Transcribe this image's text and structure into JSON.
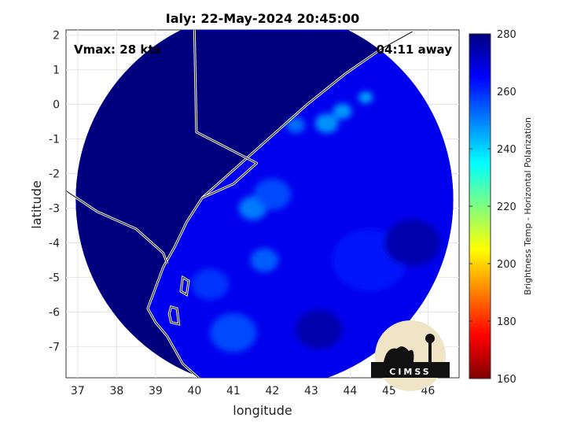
{
  "chart_data": {
    "type": "heatmap",
    "title": "Ialy: 22-May-2024 20:45:00",
    "xlabel": "longitude",
    "ylabel": "latitude",
    "xlim": [
      36.7,
      46.8
    ],
    "ylim": [
      -7.9,
      2.15
    ],
    "xticks": [
      37,
      38,
      39,
      40,
      41,
      42,
      43,
      44,
      45,
      46
    ],
    "yticks": [
      2,
      1,
      0,
      -1,
      -2,
      -3,
      -4,
      -5,
      -6,
      -7
    ],
    "grid": true,
    "annotations": {
      "vmax": "Vmax: 28 kts",
      "away": "04:11 away"
    },
    "colorbar": {
      "label": "Brightness Temp - Horizontal Polarization",
      "range": [
        160,
        280
      ],
      "ticks": [
        280,
        260,
        240,
        220,
        200,
        180,
        160
      ],
      "colormap": "jet"
    },
    "swath": {
      "center": [
        41.8,
        -2.75
      ],
      "radius_deg": 4.85
    },
    "field": {
      "background_value": 270,
      "ocean_value": 274,
      "warm_spots": [
        {
          "lon": 44.4,
          "lat": 0.2,
          "value": 242,
          "spread": 0.15
        },
        {
          "lon": 43.8,
          "lat": -0.2,
          "value": 244,
          "spread": 0.2
        },
        {
          "lon": 43.4,
          "lat": -0.55,
          "value": 245,
          "spread": 0.25
        },
        {
          "lon": 42.6,
          "lat": -0.6,
          "value": 250,
          "spread": 0.2
        },
        {
          "lon": 41.5,
          "lat": -3.0,
          "value": 248,
          "spread": 0.3
        },
        {
          "lon": 42.0,
          "lat": -2.6,
          "value": 255,
          "spread": 0.4
        },
        {
          "lon": 41.8,
          "lat": -4.5,
          "value": 252,
          "spread": 0.3
        },
        {
          "lon": 41.0,
          "lat": -6.6,
          "value": 255,
          "spread": 0.5
        },
        {
          "lon": 40.4,
          "lat": -5.2,
          "value": 258,
          "spread": 0.4
        },
        {
          "lon": 44.5,
          "lat": -4.5,
          "value": 262,
          "spread": 0.8
        }
      ],
      "cool_spots": [
        {
          "lon": 45.6,
          "lat": -4.0,
          "value": 276,
          "spread": 0.6
        },
        {
          "lon": 43.2,
          "lat": -6.5,
          "value": 276,
          "spread": 0.5
        }
      ]
    },
    "coastline": [
      [
        45.6,
        2.1
      ],
      [
        44.8,
        1.6
      ],
      [
        43.9,
        0.9
      ],
      [
        42.9,
        0.0
      ],
      [
        42.0,
        -0.9
      ],
      [
        41.3,
        -1.6
      ],
      [
        40.7,
        -2.2
      ],
      [
        40.2,
        -2.7
      ],
      [
        39.8,
        -3.4
      ],
      [
        39.5,
        -4.1
      ],
      [
        39.2,
        -4.7
      ],
      [
        39.0,
        -5.3
      ],
      [
        38.8,
        -5.9
      ],
      [
        39.0,
        -6.3
      ],
      [
        39.3,
        -6.7
      ],
      [
        39.5,
        -7.1
      ],
      [
        39.7,
        -7.5
      ],
      [
        40.1,
        -7.9
      ]
    ],
    "borders": [
      [
        [
          40.0,
          2.15
        ],
        [
          40.05,
          -0.8
        ],
        [
          41.6,
          -1.7
        ],
        [
          41.0,
          -2.3
        ],
        [
          40.2,
          -2.7
        ]
      ],
      [
        [
          36.7,
          -2.5
        ],
        [
          37.5,
          -3.1
        ],
        [
          38.5,
          -3.6
        ],
        [
          39.2,
          -4.3
        ],
        [
          39.3,
          -4.6
        ]
      ]
    ],
    "islands": [
      [
        [
          39.7,
          -5.0
        ],
        [
          39.85,
          -5.1
        ],
        [
          39.8,
          -5.5
        ],
        [
          39.65,
          -5.4
        ]
      ],
      [
        [
          39.4,
          -5.85
        ],
        [
          39.55,
          -5.9
        ],
        [
          39.6,
          -6.35
        ],
        [
          39.4,
          -6.3
        ],
        [
          39.35,
          -6.05
        ]
      ]
    ],
    "logo": {
      "text": "CIMSS"
    }
  }
}
